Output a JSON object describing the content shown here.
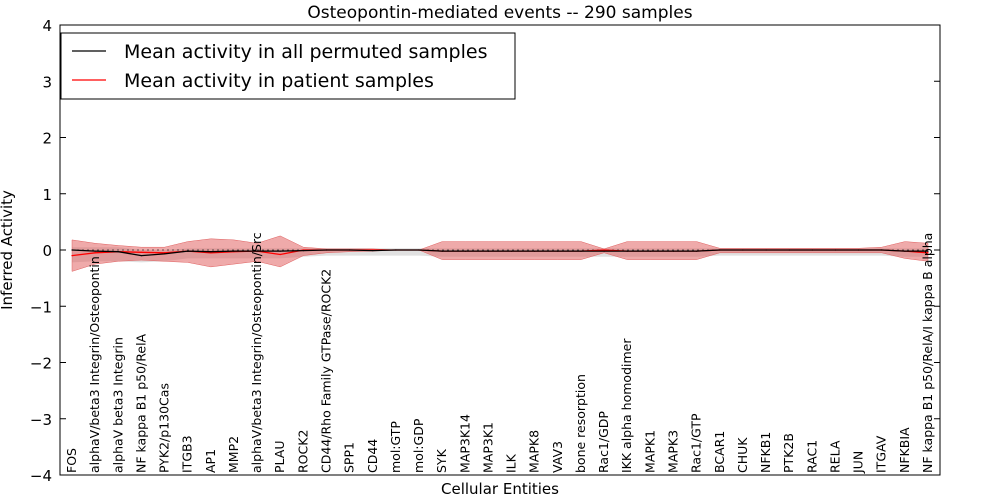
{
  "chart_data": {
    "type": "line",
    "title": "Osteopontin-mediated events -- 290 samples",
    "xlabel": "Cellular Entities",
    "ylabel": "Inferred Activity",
    "ylim": [
      -4,
      4
    ],
    "yticks": [
      -4,
      -3,
      -2,
      -1,
      0,
      1,
      2,
      3,
      4
    ],
    "ytick_labels": [
      "−4",
      "−3",
      "−2",
      "−1",
      "0",
      "1",
      "2",
      "3",
      "4"
    ],
    "legend_position": "top-left",
    "categories": [
      "FOS",
      "alphaV/beta3 Integrin/Osteopontin",
      "alphaV beta3 Integrin",
      "NF kappa B1 p50/RelA",
      "PYK2/p130Cas",
      "ITGB3",
      "AP1",
      "MMP2",
      "alphaV/beta3 Integrin/Osteopontin/Src",
      "PLAU",
      "ROCK2",
      "CD44/Rho Family GTPase/ROCK2",
      "SPP1",
      "CD44",
      "mol:GTP",
      "mol:GDP",
      "SYK",
      "MAP3K14",
      "MAP3K1",
      "ILK",
      "MAPK8",
      "VAV3",
      "bone resorption",
      "Rac1/GDP",
      "IKK alpha homodimer",
      "MAPK1",
      "MAPK3",
      "Rac1/GTP",
      "BCAR1",
      "CHUK",
      "NFKB1",
      "PTK2B",
      "RAC1",
      "RELA",
      "JUN",
      "ITGAV",
      "NFKBIA",
      "NF kappa B1 p50/RelA/I kappa B alpha"
    ],
    "series": [
      {
        "name": "Mean activity in all permuted samples",
        "color": "#000000",
        "values": [
          0.0,
          -0.02,
          -0.03,
          -0.1,
          -0.07,
          -0.02,
          -0.03,
          -0.02,
          -0.02,
          -0.02,
          -0.01,
          0.0,
          0.0,
          -0.01,
          0.0,
          0.0,
          -0.02,
          -0.02,
          -0.02,
          -0.02,
          -0.02,
          -0.02,
          -0.02,
          -0.02,
          -0.02,
          -0.02,
          -0.02,
          -0.02,
          0.0,
          0.0,
          0.0,
          0.0,
          0.0,
          0.0,
          0.0,
          0.0,
          -0.02,
          -0.02
        ],
        "lower": [
          -0.22,
          -0.2,
          -0.2,
          -0.22,
          -0.2,
          -0.15,
          -0.15,
          -0.15,
          -0.15,
          -0.15,
          -0.12,
          -0.1,
          -0.1,
          -0.1,
          -0.1,
          -0.1,
          -0.12,
          -0.12,
          -0.12,
          -0.12,
          -0.12,
          -0.12,
          -0.12,
          -0.12,
          -0.12,
          -0.12,
          -0.12,
          -0.12,
          -0.1,
          -0.1,
          -0.1,
          -0.1,
          -0.1,
          -0.1,
          -0.1,
          -0.1,
          -0.12,
          -0.12
        ],
        "upper": [
          0.05,
          0.05,
          0.05,
          0.0,
          0.0,
          0.03,
          0.03,
          0.03,
          0.03,
          0.03,
          0.03,
          0.03,
          0.03,
          0.03,
          0.03,
          0.03,
          0.03,
          0.03,
          0.03,
          0.03,
          0.03,
          0.03,
          0.03,
          0.03,
          0.03,
          0.03,
          0.03,
          0.03,
          0.03,
          0.03,
          0.03,
          0.03,
          0.03,
          0.03,
          0.03,
          0.03,
          0.03,
          0.03
        ]
      },
      {
        "name": "Mean activity in patient samples",
        "color": "#ff0000",
        "band_color": "#e07070",
        "values": [
          -0.1,
          -0.05,
          -0.03,
          -0.04,
          -0.05,
          -0.02,
          -0.05,
          -0.03,
          -0.02,
          -0.08,
          0.0,
          0.0,
          0.0,
          0.0,
          0.0,
          0.0,
          -0.02,
          -0.02,
          -0.02,
          -0.02,
          -0.02,
          -0.02,
          -0.02,
          0.0,
          -0.02,
          -0.02,
          -0.02,
          -0.02,
          0.0,
          0.0,
          0.0,
          0.0,
          0.0,
          0.0,
          0.0,
          0.0,
          -0.02,
          -0.05
        ],
        "lower": [
          -0.38,
          -0.25,
          -0.2,
          -0.18,
          -0.2,
          -0.22,
          -0.3,
          -0.25,
          -0.2,
          -0.3,
          -0.1,
          -0.05,
          -0.03,
          -0.02,
          0.0,
          0.0,
          -0.17,
          -0.17,
          -0.17,
          -0.17,
          -0.17,
          -0.17,
          -0.17,
          -0.05,
          -0.17,
          -0.17,
          -0.17,
          -0.17,
          -0.05,
          -0.05,
          -0.05,
          -0.05,
          -0.05,
          -0.05,
          -0.05,
          -0.05,
          -0.15,
          -0.2
        ],
        "upper": [
          0.18,
          0.12,
          0.08,
          0.05,
          0.05,
          0.15,
          0.2,
          0.18,
          0.12,
          0.25,
          0.05,
          0.02,
          0.02,
          0.02,
          0.0,
          0.0,
          0.15,
          0.15,
          0.15,
          0.15,
          0.15,
          0.15,
          0.15,
          0.02,
          0.15,
          0.15,
          0.15,
          0.15,
          0.03,
          0.03,
          0.03,
          0.03,
          0.03,
          0.03,
          0.03,
          0.05,
          0.15,
          0.12
        ]
      }
    ]
  }
}
